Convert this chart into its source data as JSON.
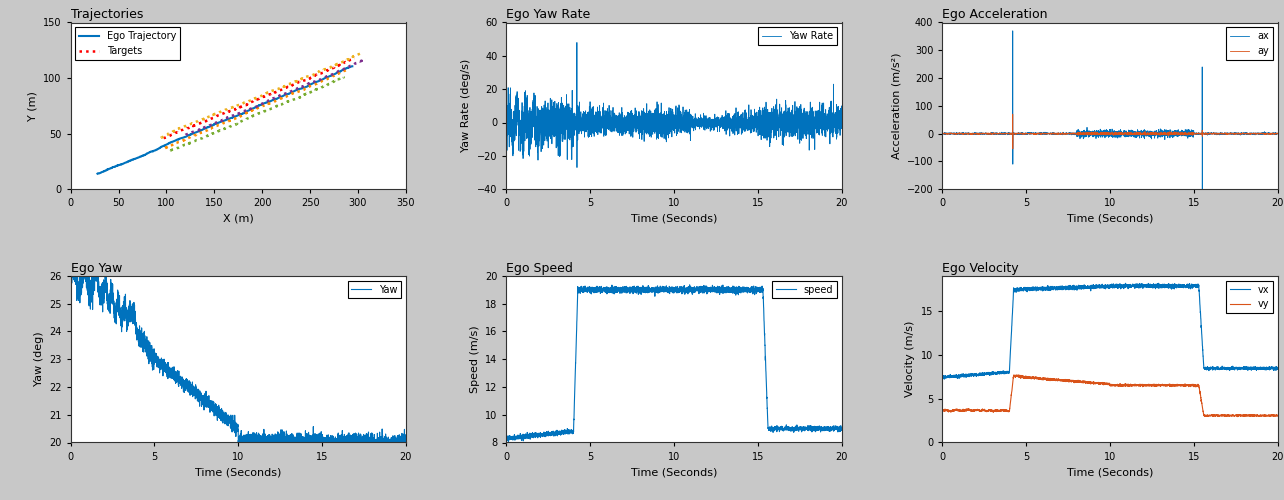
{
  "fig_width": 12.84,
  "fig_height": 5.0,
  "bg_color": "#c8c8c8",
  "traj_title": "Trajectories",
  "traj_xlabel": "X (m)",
  "traj_ylabel": "Y (m)",
  "traj_xlim": [
    0,
    350
  ],
  "traj_ylim": [
    0,
    150
  ],
  "ego_color": "#0072BD",
  "ego_label": "Ego Trajectory",
  "target_label": "Targets",
  "target_colors": [
    "#FF0000",
    "#FF8C00",
    "#EDB120",
    "#7E2F8E",
    "#77AC30"
  ],
  "yawrate_title": "Ego Yaw Rate",
  "yawrate_xlabel": "Time (Seconds)",
  "yawrate_ylabel": "Yaw Rate (deg/s)",
  "yawrate_xlim": [
    0,
    20
  ],
  "yawrate_ylim": [
    -40,
    60
  ],
  "yawrate_color": "#0072BD",
  "yawrate_label": "Yaw Rate",
  "accel_title": "Ego Acceleration",
  "accel_xlabel": "Time (Seconds)",
  "accel_ylabel": "Acceleration (m/s²)",
  "accel_xlim": [
    0,
    20
  ],
  "accel_ylim": [
    -200,
    400
  ],
  "accel_ax_color": "#0072BD",
  "accel_ay_color": "#D95319",
  "accel_ax_label": "ax",
  "accel_ay_label": "ay",
  "yaw_title": "Ego Yaw",
  "yaw_xlabel": "Time (Seconds)",
  "yaw_ylabel": "Yaw (deg)",
  "yaw_xlim": [
    0,
    20
  ],
  "yaw_ylim": [
    20,
    26
  ],
  "yaw_yticks": [
    20,
    21,
    22,
    23,
    24,
    25,
    26
  ],
  "yaw_color": "#0072BD",
  "yaw_label": "Yaw",
  "speed_title": "Ego Speed",
  "speed_xlabel": "Time (Seconds)",
  "speed_ylabel": "Speed (m/s)",
  "speed_xlim": [
    0,
    20
  ],
  "speed_ylim": [
    8,
    20
  ],
  "speed_yticks": [
    8,
    10,
    12,
    14,
    16,
    18,
    20
  ],
  "speed_color": "#0072BD",
  "speed_label": "speed",
  "vel_title": "Ego Velocity",
  "vel_xlabel": "Time (Seconds)",
  "vel_ylabel": "Velocity (m/s)",
  "vel_xlim": [
    0,
    20
  ],
  "vel_ylim": [
    0,
    19
  ],
  "vel_yticks": [
    0,
    5,
    10,
    15
  ],
  "vel_vx_color": "#0072BD",
  "vel_vy_color": "#D95319",
  "vel_vx_label": "vx",
  "vel_vy_label": "vy",
  "axes_bg": "#ffffff",
  "panel_bg": "#ebebeb",
  "title_fontsize": 9,
  "label_fontsize": 8,
  "tick_fontsize": 7,
  "legend_fontsize": 7
}
